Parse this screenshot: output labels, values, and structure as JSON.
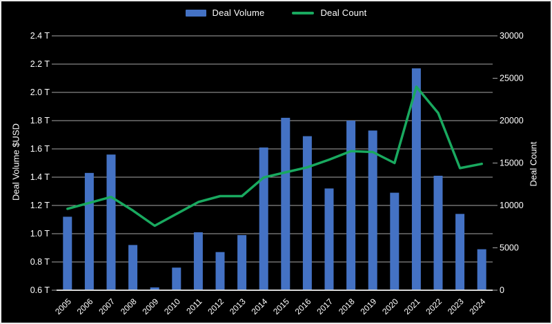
{
  "chart_data": {
    "type": "bar",
    "combo": [
      "bar",
      "line"
    ],
    "title": "",
    "categories": [
      "2005",
      "2006",
      "2007",
      "2008",
      "2009",
      "2010",
      "2011",
      "2012",
      "2013",
      "2014",
      "2015",
      "2016",
      "2017",
      "2018",
      "2019",
      "2020",
      "2021",
      "2022",
      "2023",
      "2024"
    ],
    "series": [
      {
        "name": "Deal Volume",
        "type": "bar",
        "axis": "left",
        "unit": "T USD",
        "color": "#4472C4",
        "values": [
          1.12,
          1.43,
          1.56,
          0.92,
          0.62,
          0.76,
          1.01,
          0.87,
          0.99,
          1.61,
          1.82,
          1.69,
          1.32,
          1.8,
          1.73,
          1.29,
          2.17,
          1.41,
          1.14,
          0.89
        ]
      },
      {
        "name": "Deal Count",
        "type": "line",
        "axis": "right",
        "color": "#19A95F",
        "values": [
          9600,
          10300,
          11000,
          9400,
          7600,
          9000,
          10400,
          11100,
          11100,
          13300,
          13900,
          14500,
          15400,
          16400,
          16300,
          15000,
          24000,
          20900,
          14400,
          14900
        ]
      }
    ],
    "left_axis": {
      "label": "Deal Volume $USD",
      "min": 0.6,
      "max": 2.4,
      "step": 0.2,
      "ticks": [
        "2.4 T",
        "2.2 T",
        "2.0 T",
        "1.8 T",
        "1.6 T",
        "1.4 T",
        "1.2 T",
        "1.0 T",
        "0.8 T",
        "0.6 T"
      ]
    },
    "right_axis": {
      "label": "Deal Count",
      "min": 0,
      "max": 30000,
      "step": 5000,
      "ticks": [
        "30000",
        "25000",
        "20000",
        "15000",
        "10000",
        "5000",
        "0"
      ]
    },
    "grid": true,
    "legend_position": "top",
    "background": "#000000",
    "colors": {
      "gridline": "#a8a8a8",
      "axis_line": "#d9d9d9",
      "text": "#ffffff"
    }
  },
  "legend": {
    "items": [
      {
        "label": "Deal Volume",
        "color": "#4472C4",
        "marker": "rect"
      },
      {
        "label": "Deal Count",
        "color": "#19A95F",
        "marker": "line"
      }
    ]
  }
}
